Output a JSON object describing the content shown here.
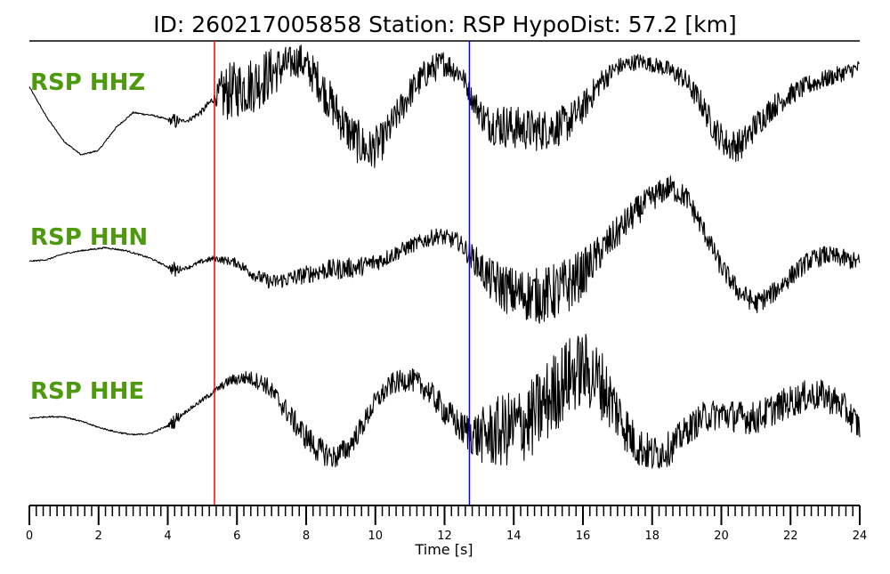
{
  "chart_data": {
    "type": "line",
    "title": "ID: 260217005858   Station: RSP   HypoDist:    57.2 [km]",
    "xlabel": "Time [s]",
    "xlim": [
      0,
      24
    ],
    "x_major_ticks": [
      0,
      2,
      4,
      6,
      8,
      10,
      12,
      14,
      16,
      18,
      20,
      22,
      24
    ],
    "x_minor_step": 0.2,
    "picks": [
      {
        "time": 5.35,
        "color": "#ff0000"
      },
      {
        "time": 12.72,
        "color": "#0000ff"
      }
    ],
    "series": [
      {
        "name": "RSP HHZ",
        "noise_amp": [
          [
            0,
            0.02
          ],
          [
            4,
            0.03
          ],
          [
            4.2,
            0.3
          ],
          [
            4.4,
            0.05
          ],
          [
            5.35,
            0.15
          ],
          [
            5.6,
            0.95
          ],
          [
            6.8,
            0.95
          ],
          [
            7.6,
            0.55
          ],
          [
            8.5,
            0.7
          ],
          [
            9.7,
            0.75
          ],
          [
            10.6,
            0.55
          ],
          [
            11.6,
            0.5
          ],
          [
            12.7,
            0.35
          ],
          [
            13.5,
            0.75
          ],
          [
            15.5,
            0.65
          ],
          [
            17,
            0.3
          ],
          [
            18,
            0.25
          ],
          [
            19.2,
            0.4
          ],
          [
            20.4,
            0.55
          ],
          [
            22,
            0.35
          ],
          [
            24,
            0.25
          ]
        ],
        "envelope": [
          [
            0,
            0.6
          ],
          [
            0.5,
            -0.4
          ],
          [
            1.0,
            -1.2
          ],
          [
            1.5,
            -1.65
          ],
          [
            2.0,
            -1.5
          ],
          [
            2.5,
            -0.75
          ],
          [
            3.0,
            -0.25
          ],
          [
            3.6,
            -0.35
          ],
          [
            4.2,
            -0.55
          ],
          [
            4.6,
            -0.5
          ],
          [
            5.0,
            -0.2
          ],
          [
            5.35,
            0.25
          ],
          [
            5.8,
            0.45
          ],
          [
            6.5,
            0.7
          ],
          [
            7.2,
            1.2
          ],
          [
            7.8,
            1.5
          ],
          [
            8.3,
            0.9
          ],
          [
            8.8,
            -0.1
          ],
          [
            9.3,
            -1.0
          ],
          [
            9.8,
            -1.55
          ],
          [
            10.2,
            -1.2
          ],
          [
            10.6,
            -0.4
          ],
          [
            11.0,
            0.4
          ],
          [
            11.5,
            1.1
          ],
          [
            12.0,
            1.4
          ],
          [
            12.5,
            1.0
          ],
          [
            12.8,
            0.2
          ],
          [
            13.2,
            -0.55
          ],
          [
            14.0,
            -0.75
          ],
          [
            14.7,
            -0.85
          ],
          [
            15.5,
            -0.65
          ],
          [
            16.0,
            -0.1
          ],
          [
            16.5,
            0.75
          ],
          [
            17.0,
            1.25
          ],
          [
            17.6,
            1.45
          ],
          [
            18.3,
            1.25
          ],
          [
            18.9,
            0.9
          ],
          [
            19.4,
            0.1
          ],
          [
            19.8,
            -0.8
          ],
          [
            20.2,
            -1.35
          ],
          [
            20.6,
            -1.3
          ],
          [
            21.0,
            -0.65
          ],
          [
            21.5,
            -0.05
          ],
          [
            22.0,
            0.35
          ],
          [
            22.5,
            0.65
          ],
          [
            23.0,
            0.85
          ],
          [
            23.5,
            1.05
          ],
          [
            24.0,
            1.25
          ]
        ]
      },
      {
        "name": "RSP HHN",
        "noise_amp": [
          [
            0,
            0.02
          ],
          [
            4,
            0.03
          ],
          [
            4.2,
            0.3
          ],
          [
            4.4,
            0.05
          ],
          [
            5.35,
            0.1
          ],
          [
            7,
            0.25
          ],
          [
            9,
            0.35
          ],
          [
            11,
            0.25
          ],
          [
            12.5,
            0.3
          ],
          [
            13.5,
            0.8
          ],
          [
            15.5,
            1.0
          ],
          [
            16.5,
            0.6
          ],
          [
            18,
            0.45
          ],
          [
            19.5,
            0.35
          ],
          [
            21,
            0.35
          ],
          [
            24,
            0.3
          ]
        ],
        "envelope": [
          [
            0,
            0.1
          ],
          [
            0.5,
            0.15
          ],
          [
            1.0,
            0.35
          ],
          [
            1.5,
            0.45
          ],
          [
            2.2,
            0.55
          ],
          [
            2.8,
            0.45
          ],
          [
            3.5,
            0.2
          ],
          [
            4.2,
            -0.2
          ],
          [
            4.6,
            -0.1
          ],
          [
            5.0,
            0.1
          ],
          [
            5.35,
            0.2
          ],
          [
            6.0,
            0.05
          ],
          [
            6.5,
            -0.35
          ],
          [
            7.0,
            -0.6
          ],
          [
            7.6,
            -0.45
          ],
          [
            8.5,
            -0.2
          ],
          [
            9.5,
            -0.1
          ],
          [
            10.2,
            0.15
          ],
          [
            11.0,
            0.6
          ],
          [
            11.8,
            0.95
          ],
          [
            12.4,
            0.75
          ],
          [
            12.9,
            0.1
          ],
          [
            13.3,
            -0.5
          ],
          [
            14.0,
            -0.95
          ],
          [
            14.8,
            -1.05
          ],
          [
            15.4,
            -0.85
          ],
          [
            16.0,
            -0.3
          ],
          [
            16.5,
            0.4
          ],
          [
            17.0,
            1.05
          ],
          [
            17.5,
            1.7
          ],
          [
            18.0,
            2.2
          ],
          [
            18.5,
            2.55
          ],
          [
            19.0,
            2.2
          ],
          [
            19.5,
            1.1
          ],
          [
            20.0,
            -0.1
          ],
          [
            20.5,
            -0.9
          ],
          [
            21.0,
            -1.3
          ],
          [
            21.5,
            -0.95
          ],
          [
            22.0,
            -0.4
          ],
          [
            22.5,
            0.1
          ],
          [
            23.0,
            0.3
          ],
          [
            23.5,
            0.2
          ],
          [
            24.0,
            0.05
          ]
        ]
      },
      {
        "name": "RSP HHE",
        "noise_amp": [
          [
            0,
            0.02
          ],
          [
            4,
            0.03
          ],
          [
            4.2,
            0.3
          ],
          [
            4.4,
            0.05
          ],
          [
            5.35,
            0.1
          ],
          [
            6,
            0.2
          ],
          [
            8,
            0.45
          ],
          [
            10,
            0.35
          ],
          [
            11.5,
            0.4
          ],
          [
            12.5,
            0.55
          ],
          [
            13.5,
            1.2
          ],
          [
            15,
            1.4
          ],
          [
            16.5,
            1.2
          ],
          [
            17.5,
            0.7
          ],
          [
            19,
            0.5
          ],
          [
            21,
            0.55
          ],
          [
            24,
            0.5
          ]
        ],
        "envelope": [
          [
            0,
            0.0
          ],
          [
            0.5,
            0.05
          ],
          [
            1.0,
            0.05
          ],
          [
            1.5,
            -0.1
          ],
          [
            2.0,
            -0.3
          ],
          [
            2.5,
            -0.45
          ],
          [
            3.0,
            -0.55
          ],
          [
            3.5,
            -0.5
          ],
          [
            4.0,
            -0.25
          ],
          [
            4.5,
            0.2
          ],
          [
            5.0,
            0.6
          ],
          [
            5.35,
            0.9
          ],
          [
            5.8,
            1.25
          ],
          [
            6.3,
            1.35
          ],
          [
            6.8,
            1.15
          ],
          [
            7.3,
            0.45
          ],
          [
            7.8,
            -0.35
          ],
          [
            8.3,
            -1.0
          ],
          [
            8.8,
            -1.3
          ],
          [
            9.2,
            -1.0
          ],
          [
            9.6,
            -0.3
          ],
          [
            10.0,
            0.55
          ],
          [
            10.5,
            1.15
          ],
          [
            11.0,
            1.3
          ],
          [
            11.5,
            0.95
          ],
          [
            12.0,
            0.25
          ],
          [
            12.5,
            -0.35
          ],
          [
            13.0,
            -0.6
          ],
          [
            13.5,
            -0.5
          ],
          [
            14.0,
            -0.3
          ],
          [
            14.5,
            -0.05
          ],
          [
            15.0,
            0.6
          ],
          [
            15.5,
            1.3
          ],
          [
            16.0,
            1.65
          ],
          [
            16.5,
            1.2
          ],
          [
            17.0,
            0.2
          ],
          [
            17.5,
            -0.85
          ],
          [
            18.0,
            -1.2
          ],
          [
            18.5,
            -1.0
          ],
          [
            19.0,
            -0.4
          ],
          [
            19.5,
            0.05
          ],
          [
            20.0,
            0.15
          ],
          [
            20.5,
            0.05
          ],
          [
            21.0,
            0.0
          ],
          [
            21.5,
            0.3
          ],
          [
            22.0,
            0.55
          ],
          [
            22.5,
            0.75
          ],
          [
            23.0,
            0.75
          ],
          [
            23.5,
            0.4
          ],
          [
            24.0,
            -0.3
          ]
        ]
      }
    ]
  }
}
